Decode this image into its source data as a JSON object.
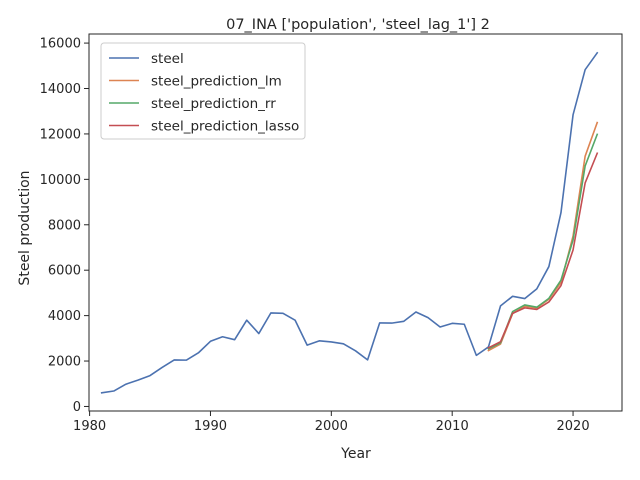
{
  "chart_data": {
    "type": "line",
    "title": "07_INA ['population', 'steel_lag_1'] 2",
    "xlabel": "Year",
    "ylabel": "Steel production",
    "xlim": [
      1979.95,
      2024.05
    ],
    "ylim": [
      -200,
      16400
    ],
    "xticks": [
      1980,
      1990,
      2000,
      2010,
      2020
    ],
    "yticks": [
      0,
      2000,
      4000,
      6000,
      8000,
      10000,
      12000,
      14000,
      16000
    ],
    "grid": false,
    "legend_position": "top-left",
    "series": [
      {
        "name": "steel",
        "color": "#4c72b0",
        "x": [
          1981,
          1982,
          1983,
          1984,
          1985,
          1986,
          1987,
          1988,
          1989,
          1990,
          1991,
          1992,
          1993,
          1994,
          1995,
          1996,
          1997,
          1998,
          1999,
          2000,
          2001,
          2002,
          2003,
          2004,
          2005,
          2006,
          2007,
          2008,
          2009,
          2010,
          2011,
          2012,
          2013,
          2014,
          2015,
          2016,
          2017,
          2018,
          2019,
          2020,
          2021,
          2022
        ],
        "values": [
          600,
          680,
          980,
          1160,
          1360,
          1720,
          2050,
          2040,
          2360,
          2870,
          3070,
          2940,
          3800,
          3210,
          4120,
          4100,
          3800,
          2700,
          2890,
          2840,
          2760,
          2450,
          2050,
          3680,
          3670,
          3750,
          4160,
          3910,
          3500,
          3660,
          3620,
          2250,
          2620,
          4430,
          4850,
          4750,
          5180,
          6160,
          8530,
          12840,
          14830,
          15570
        ]
      },
      {
        "name": "steel_prediction_lm",
        "color": "#dd8452",
        "x": [
          2013,
          2014,
          2015,
          2016,
          2017,
          2018,
          2019,
          2020,
          2021,
          2022
        ],
        "values": [
          2460,
          2750,
          4090,
          4410,
          4340,
          4720,
          5460,
          7500,
          11020,
          12500
        ]
      },
      {
        "name": "steel_prediction_rr",
        "color": "#55a868",
        "x": [
          2013,
          2014,
          2015,
          2016,
          2017,
          2018,
          2019,
          2020,
          2021,
          2022
        ],
        "values": [
          2540,
          2800,
          4180,
          4470,
          4370,
          4760,
          5560,
          7330,
          10590,
          11980
        ]
      },
      {
        "name": "steel_prediction_lasso",
        "color": "#c44e52",
        "x": [
          2013,
          2014,
          2015,
          2016,
          2017,
          2018,
          2019,
          2020,
          2021,
          2022
        ],
        "values": [
          2580,
          2850,
          4100,
          4340,
          4270,
          4600,
          5320,
          6890,
          9840,
          11150
        ]
      }
    ]
  }
}
